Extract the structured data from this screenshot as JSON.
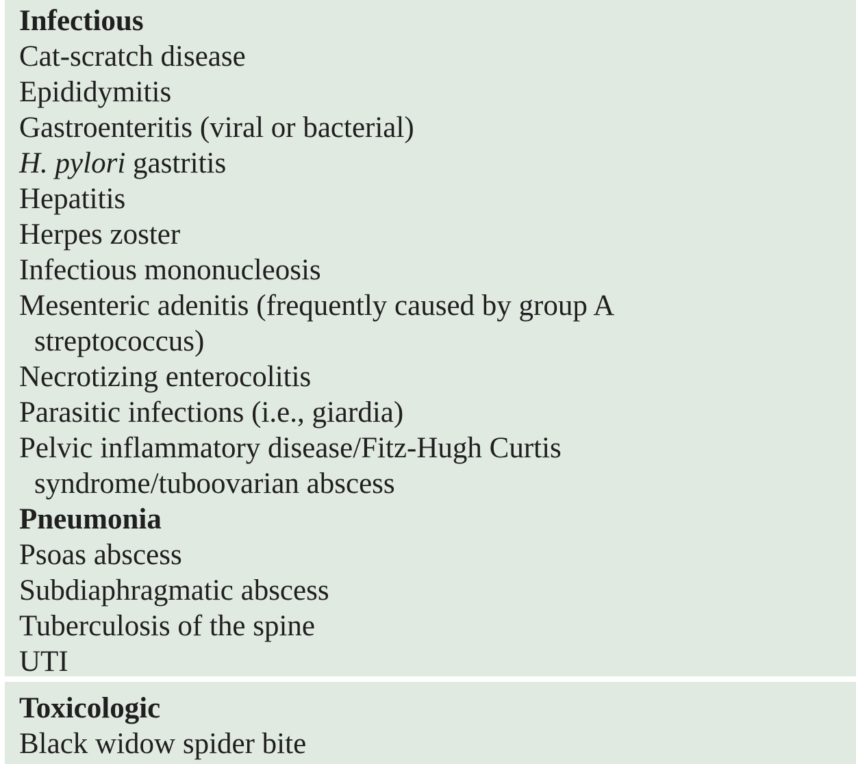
{
  "sections": [
    {
      "heading": "Infectious",
      "items": [
        {
          "lines": [
            "Cat-scratch disease"
          ]
        },
        {
          "lines": [
            "Epididymitis"
          ]
        },
        {
          "lines": [
            "Gastroenteritis (viral or bacterial)"
          ]
        },
        {
          "italic": "H. pylori",
          "rest": " gastritis"
        },
        {
          "lines": [
            "Hepatitis"
          ]
        },
        {
          "lines": [
            "Herpes zoster"
          ]
        },
        {
          "lines": [
            "Infectious mononucleosis"
          ]
        },
        {
          "lines": [
            "Mesenteric adenitis (frequently caused by group A",
            "streptococcus)"
          ]
        },
        {
          "lines": [
            "Necrotizing enterocolitis"
          ]
        },
        {
          "lines": [
            "Parasitic infections (i.e., giardia)"
          ]
        },
        {
          "lines": [
            "Pelvic inflammatory disease/Fitz-Hugh Curtis",
            "syndrome/tuboovarian abscess"
          ]
        },
        {
          "lines": [
            "Pneumonia"
          ],
          "bold": true
        },
        {
          "lines": [
            "Psoas abscess"
          ]
        },
        {
          "lines": [
            "Subdiaphragmatic abscess"
          ]
        },
        {
          "lines": [
            "Tuberculosis of the spine"
          ]
        },
        {
          "lines": [
            "UTI"
          ]
        }
      ]
    },
    {
      "heading": "Toxicologic",
      "items": [
        {
          "lines": [
            "Black widow spider bite"
          ]
        }
      ]
    }
  ]
}
